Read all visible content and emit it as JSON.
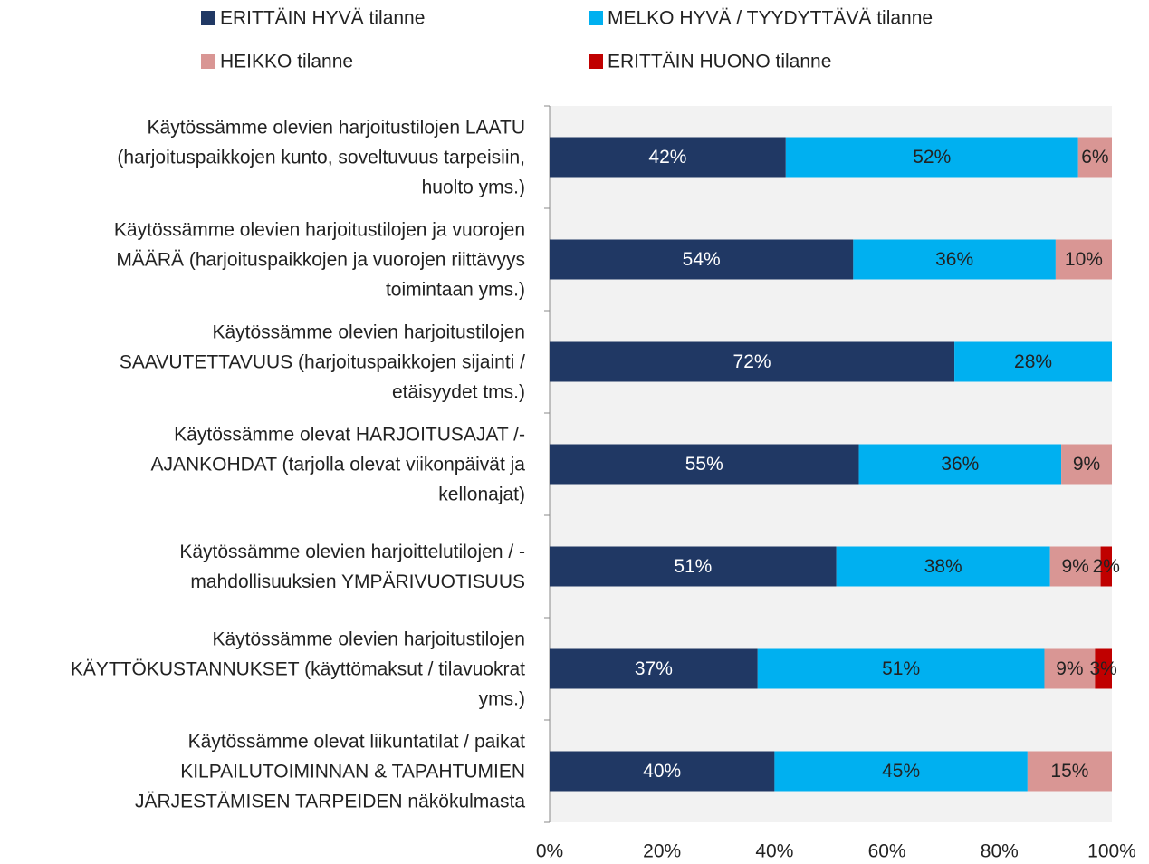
{
  "chart_data": {
    "type": "stacked-barh",
    "categories": [
      "Käytössämme olevien harjoitustilojen LAATU\n(harjoituspaikkojen kunto, soveltuvuus tarpeisiin,\nhuolto yms.)",
      "Käytössämme olevien harjoitustilojen ja vuorojen\nMÄÄRÄ (harjoituspaikkojen ja vuorojen riittävyys\ntoimintaan yms.)",
      "Käytössämme olevien harjoitustilojen\nSAAVUTETTAVUUS (harjoituspaikkojen sijainti /\netäisyydet tms.)",
      "Käytössämme olevat HARJOITUSAJAT /-\nAJANKOHDAT (tarjolla olevat viikonpäivät ja\nkellonajat)",
      "Käytössämme olevien harjoittelutilojen / -\nmahdollisuuksien YMPÄRIVUOTISUUS",
      "Käytössämme olevien harjoitustilojen\nKÄYTTÖKUSTANNUKSET (käyttömaksut / tilavuokrat\nyms.)",
      "Käytössämme olevat liikuntatilat / paikat\nKILPAILUTOIMINNAN & TAPAHTUMIEN\nJÄRJESTÄMISEN TARPEIDEN näkökulmasta"
    ],
    "series": [
      {
        "name": "ERITTÄIN HYVÄ tilanne",
        "color": "#203864",
        "values": [
          42,
          54,
          72,
          55,
          51,
          37,
          40
        ],
        "value_labels": [
          "42%",
          "54%",
          "72%",
          "55%",
          "51%",
          "37%",
          "40%"
        ]
      },
      {
        "name": "MELKO HYVÄ / TYYDYTTÄVÄ tilanne",
        "color": "#00b0f0",
        "values": [
          52,
          36,
          28,
          36,
          38,
          51,
          45
        ],
        "value_labels": [
          "52%",
          "36%",
          "28%",
          "36%",
          "38%",
          "51%",
          "45%"
        ]
      },
      {
        "name": "HEIKKO tilanne",
        "color": "#d99694",
        "values": [
          6,
          10,
          0,
          9,
          9,
          9,
          15
        ],
        "value_labels": [
          "6%",
          "10%",
          null,
          "9%",
          "9%",
          "9%",
          "15%"
        ]
      },
      {
        "name": "ERITTÄIN HUONO tilanne",
        "color": "#c00000",
        "values": [
          0,
          0,
          0,
          0,
          2,
          3,
          0
        ],
        "value_labels": [
          null,
          null,
          null,
          null,
          "2%",
          "3%",
          null
        ]
      }
    ],
    "xlim": [
      0,
      100
    ],
    "xticks": [
      {
        "value": 0,
        "label": "0%"
      },
      {
        "value": 20,
        "label": "20%"
      },
      {
        "value": 40,
        "label": "40%"
      },
      {
        "value": 60,
        "label": "60%"
      },
      {
        "value": 80,
        "label": "80%"
      },
      {
        "value": 100,
        "label": "100%"
      }
    ],
    "legend": "top"
  }
}
